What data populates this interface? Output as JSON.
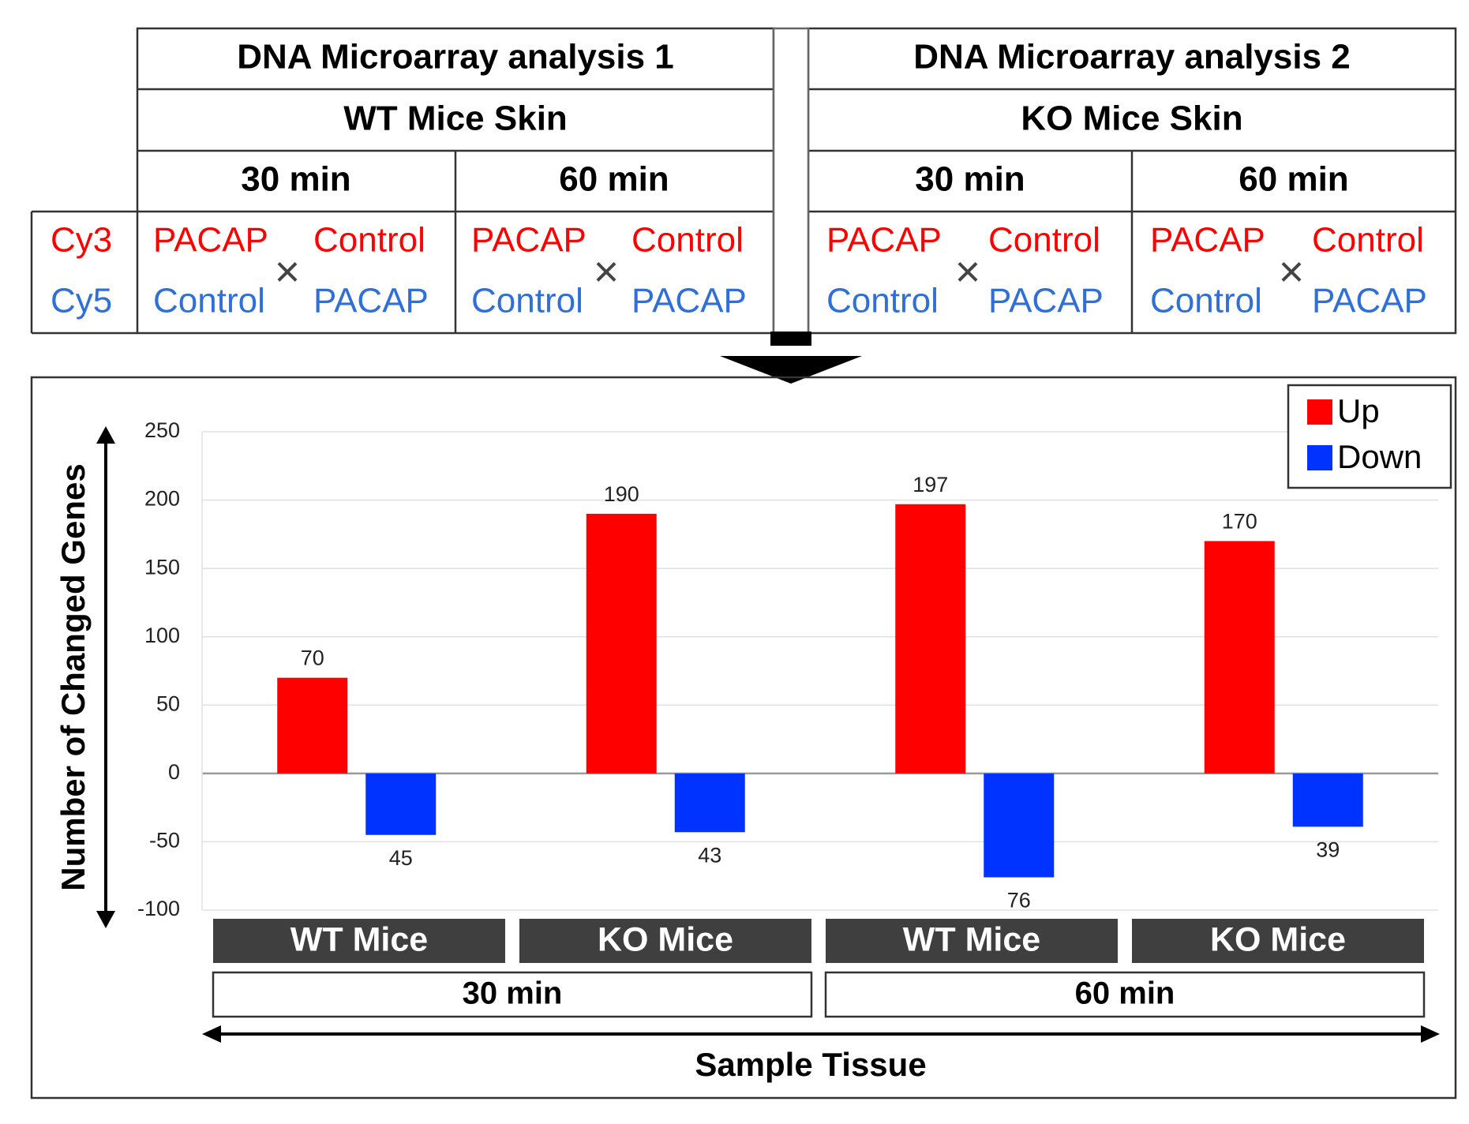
{
  "header_table": {
    "analysis_1": {
      "title": "DNA Microarray analysis 1",
      "sample": "WT Mice Skin",
      "times": [
        "30 min",
        "60 min"
      ]
    },
    "analysis_2": {
      "title": "DNA Microarray analysis 2",
      "sample": "KO Mice Skin",
      "times": [
        "30 min",
        "60 min"
      ]
    },
    "dyes": {
      "cy3": "Cy3",
      "cy5": "Cy5"
    },
    "cy3_row": {
      "left": "PACAP",
      "right": "Control"
    },
    "cy5_row": {
      "left": "Control",
      "right": "PACAP"
    },
    "cross_symbol": "×",
    "colors": {
      "cy3": "#ff0000",
      "cy5": "#2f6fd6"
    }
  },
  "chart_data": {
    "type": "bar",
    "title": "",
    "ylabel": "Number of Changed Genes",
    "xlabel": "Sample Tissue",
    "ylim": [
      -100,
      250
    ],
    "yticks": [
      250,
      200,
      150,
      100,
      50,
      0,
      -50,
      -100
    ],
    "grid": true,
    "legend_position": "top-right",
    "categories": [
      "WT Mice",
      "KO Mice",
      "WT Mice",
      "KO Mice"
    ],
    "time_groups": [
      "30 min",
      "60 min"
    ],
    "series": [
      {
        "name": "Up",
        "color": "#ff0000",
        "values": [
          70,
          190,
          197,
          170
        ],
        "labels": [
          "70",
          "190",
          "197",
          "170"
        ]
      },
      {
        "name": "Down",
        "color": "#0033ff",
        "values": [
          -45,
          -43,
          -76,
          -39
        ],
        "labels": [
          "45",
          "43",
          "76",
          "39"
        ]
      }
    ]
  }
}
